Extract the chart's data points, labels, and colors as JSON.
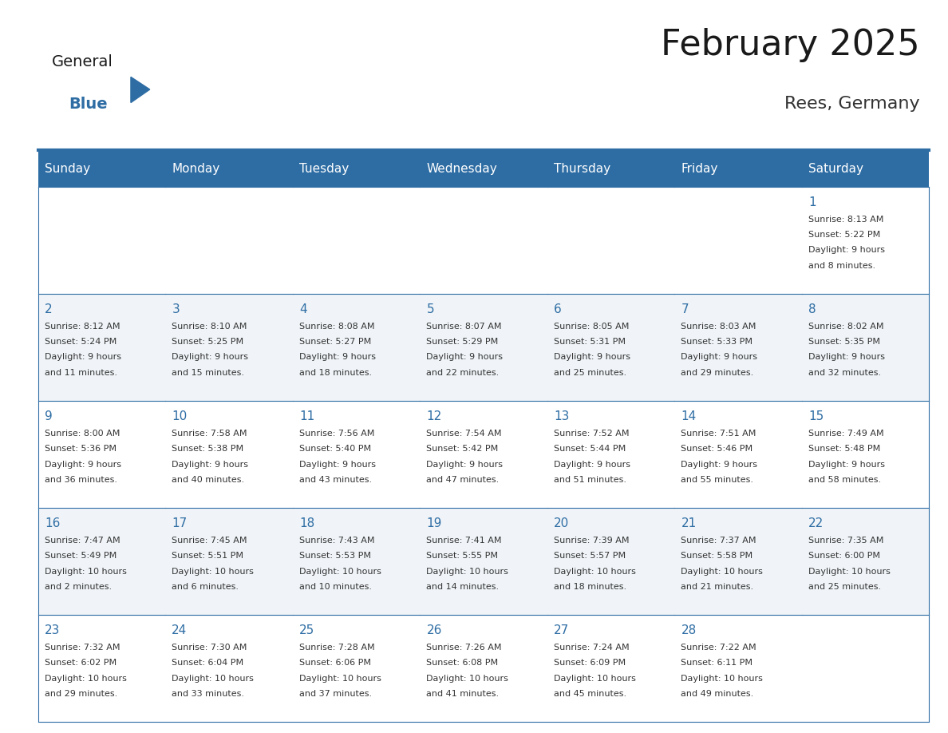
{
  "title": "February 2025",
  "subtitle": "Rees, Germany",
  "header_bg_color": "#2E6DA4",
  "header_text_color": "#FFFFFF",
  "day_names": [
    "Sunday",
    "Monday",
    "Tuesday",
    "Wednesday",
    "Thursday",
    "Friday",
    "Saturday"
  ],
  "title_color": "#1a1a1a",
  "subtitle_color": "#333333",
  "cell_bg_even": "#FFFFFF",
  "cell_bg_odd": "#F0F4F8",
  "line_color": "#2E6DA4",
  "day_num_color": "#2E6DA4",
  "cell_text_color": "#333333",
  "logo_general_color": "#1a1a1a",
  "logo_blue_color": "#2E6DA4",
  "calendar_data": [
    [
      null,
      null,
      null,
      null,
      null,
      null,
      {
        "day": 1,
        "sunrise": "8:13 AM",
        "sunset": "5:22 PM",
        "daylight": "9 hours and 8 minutes."
      }
    ],
    [
      {
        "day": 2,
        "sunrise": "8:12 AM",
        "sunset": "5:24 PM",
        "daylight": "9 hours and 11 minutes."
      },
      {
        "day": 3,
        "sunrise": "8:10 AM",
        "sunset": "5:25 PM",
        "daylight": "9 hours and 15 minutes."
      },
      {
        "day": 4,
        "sunrise": "8:08 AM",
        "sunset": "5:27 PM",
        "daylight": "9 hours and 18 minutes."
      },
      {
        "day": 5,
        "sunrise": "8:07 AM",
        "sunset": "5:29 PM",
        "daylight": "9 hours and 22 minutes."
      },
      {
        "day": 6,
        "sunrise": "8:05 AM",
        "sunset": "5:31 PM",
        "daylight": "9 hours and 25 minutes."
      },
      {
        "day": 7,
        "sunrise": "8:03 AM",
        "sunset": "5:33 PM",
        "daylight": "9 hours and 29 minutes."
      },
      {
        "day": 8,
        "sunrise": "8:02 AM",
        "sunset": "5:35 PM",
        "daylight": "9 hours and 32 minutes."
      }
    ],
    [
      {
        "day": 9,
        "sunrise": "8:00 AM",
        "sunset": "5:36 PM",
        "daylight": "9 hours and 36 minutes."
      },
      {
        "day": 10,
        "sunrise": "7:58 AM",
        "sunset": "5:38 PM",
        "daylight": "9 hours and 40 minutes."
      },
      {
        "day": 11,
        "sunrise": "7:56 AM",
        "sunset": "5:40 PM",
        "daylight": "9 hours and 43 minutes."
      },
      {
        "day": 12,
        "sunrise": "7:54 AM",
        "sunset": "5:42 PM",
        "daylight": "9 hours and 47 minutes."
      },
      {
        "day": 13,
        "sunrise": "7:52 AM",
        "sunset": "5:44 PM",
        "daylight": "9 hours and 51 minutes."
      },
      {
        "day": 14,
        "sunrise": "7:51 AM",
        "sunset": "5:46 PM",
        "daylight": "9 hours and 55 minutes."
      },
      {
        "day": 15,
        "sunrise": "7:49 AM",
        "sunset": "5:48 PM",
        "daylight": "9 hours and 58 minutes."
      }
    ],
    [
      {
        "day": 16,
        "sunrise": "7:47 AM",
        "sunset": "5:49 PM",
        "daylight": "10 hours and 2 minutes."
      },
      {
        "day": 17,
        "sunrise": "7:45 AM",
        "sunset": "5:51 PM",
        "daylight": "10 hours and 6 minutes."
      },
      {
        "day": 18,
        "sunrise": "7:43 AM",
        "sunset": "5:53 PM",
        "daylight": "10 hours and 10 minutes."
      },
      {
        "day": 19,
        "sunrise": "7:41 AM",
        "sunset": "5:55 PM",
        "daylight": "10 hours and 14 minutes."
      },
      {
        "day": 20,
        "sunrise": "7:39 AM",
        "sunset": "5:57 PM",
        "daylight": "10 hours and 18 minutes."
      },
      {
        "day": 21,
        "sunrise": "7:37 AM",
        "sunset": "5:58 PM",
        "daylight": "10 hours and 21 minutes."
      },
      {
        "day": 22,
        "sunrise": "7:35 AM",
        "sunset": "6:00 PM",
        "daylight": "10 hours and 25 minutes."
      }
    ],
    [
      {
        "day": 23,
        "sunrise": "7:32 AM",
        "sunset": "6:02 PM",
        "daylight": "10 hours and 29 minutes."
      },
      {
        "day": 24,
        "sunrise": "7:30 AM",
        "sunset": "6:04 PM",
        "daylight": "10 hours and 33 minutes."
      },
      {
        "day": 25,
        "sunrise": "7:28 AM",
        "sunset": "6:06 PM",
        "daylight": "10 hours and 37 minutes."
      },
      {
        "day": 26,
        "sunrise": "7:26 AM",
        "sunset": "6:08 PM",
        "daylight": "10 hours and 41 minutes."
      },
      {
        "day": 27,
        "sunrise": "7:24 AM",
        "sunset": "6:09 PM",
        "daylight": "10 hours and 45 minutes."
      },
      {
        "day": 28,
        "sunrise": "7:22 AM",
        "sunset": "6:11 PM",
        "daylight": "10 hours and 49 minutes."
      },
      null
    ]
  ]
}
